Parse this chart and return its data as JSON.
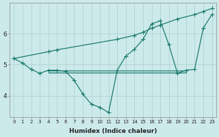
{
  "xlabel": "Humidex (Indice chaleur)",
  "bg_color": "#cdeaea",
  "grid_color": "#aacece",
  "line_color": "#1a7a6e",
  "xlim": [
    -0.5,
    23.5
  ],
  "ylim": [
    3.3,
    7.0
  ],
  "yticks": [
    4,
    5,
    6
  ],
  "xticks": [
    0,
    1,
    2,
    3,
    4,
    5,
    6,
    7,
    8,
    9,
    10,
    11,
    12,
    13,
    14,
    15,
    16,
    17,
    18,
    19,
    20,
    21,
    22,
    23
  ],
  "series_zigzag_x": [
    0,
    1,
    2,
    3,
    4,
    5,
    6,
    7,
    8,
    9,
    10,
    11,
    12,
    13,
    14,
    15,
    16,
    17,
    18,
    19,
    20,
    21,
    22,
    23
  ],
  "series_zigzag_y": [
    5.2,
    5.05,
    4.85,
    4.72,
    4.82,
    4.82,
    4.78,
    4.5,
    4.05,
    3.72,
    3.62,
    3.45,
    4.82,
    5.28,
    5.5,
    5.82,
    6.32,
    6.42,
    5.65,
    4.72,
    4.82,
    4.85,
    6.18,
    6.62
  ],
  "series_diag_x": [
    0,
    4,
    5,
    12,
    14,
    15,
    16,
    17,
    19,
    21,
    22,
    23
  ],
  "series_diag_y": [
    5.2,
    5.42,
    5.48,
    5.82,
    5.95,
    6.05,
    6.18,
    6.28,
    6.48,
    6.62,
    6.72,
    6.82
  ],
  "series_flat1_x": [
    4,
    5,
    6,
    7,
    8,
    9,
    10,
    11,
    12,
    13,
    14,
    15,
    16,
    17,
    18,
    19,
    20
  ],
  "series_flat1_y": [
    4.82,
    4.82,
    4.82,
    4.82,
    4.82,
    4.82,
    4.82,
    4.82,
    4.82,
    4.82,
    4.82,
    4.82,
    4.82,
    4.82,
    4.82,
    4.82,
    4.82
  ],
  "series_flat2_x": [
    4,
    5,
    6,
    7,
    8,
    9,
    10,
    11,
    12,
    13,
    14,
    15,
    16,
    17,
    18,
    19,
    20
  ],
  "series_flat2_y": [
    4.75,
    4.75,
    4.75,
    4.75,
    4.75,
    4.75,
    4.75,
    4.75,
    4.75,
    4.75,
    4.75,
    4.75,
    4.75,
    4.75,
    4.75,
    4.75,
    4.75
  ],
  "marker": "+",
  "markersize": 4.0,
  "linewidth": 0.9
}
